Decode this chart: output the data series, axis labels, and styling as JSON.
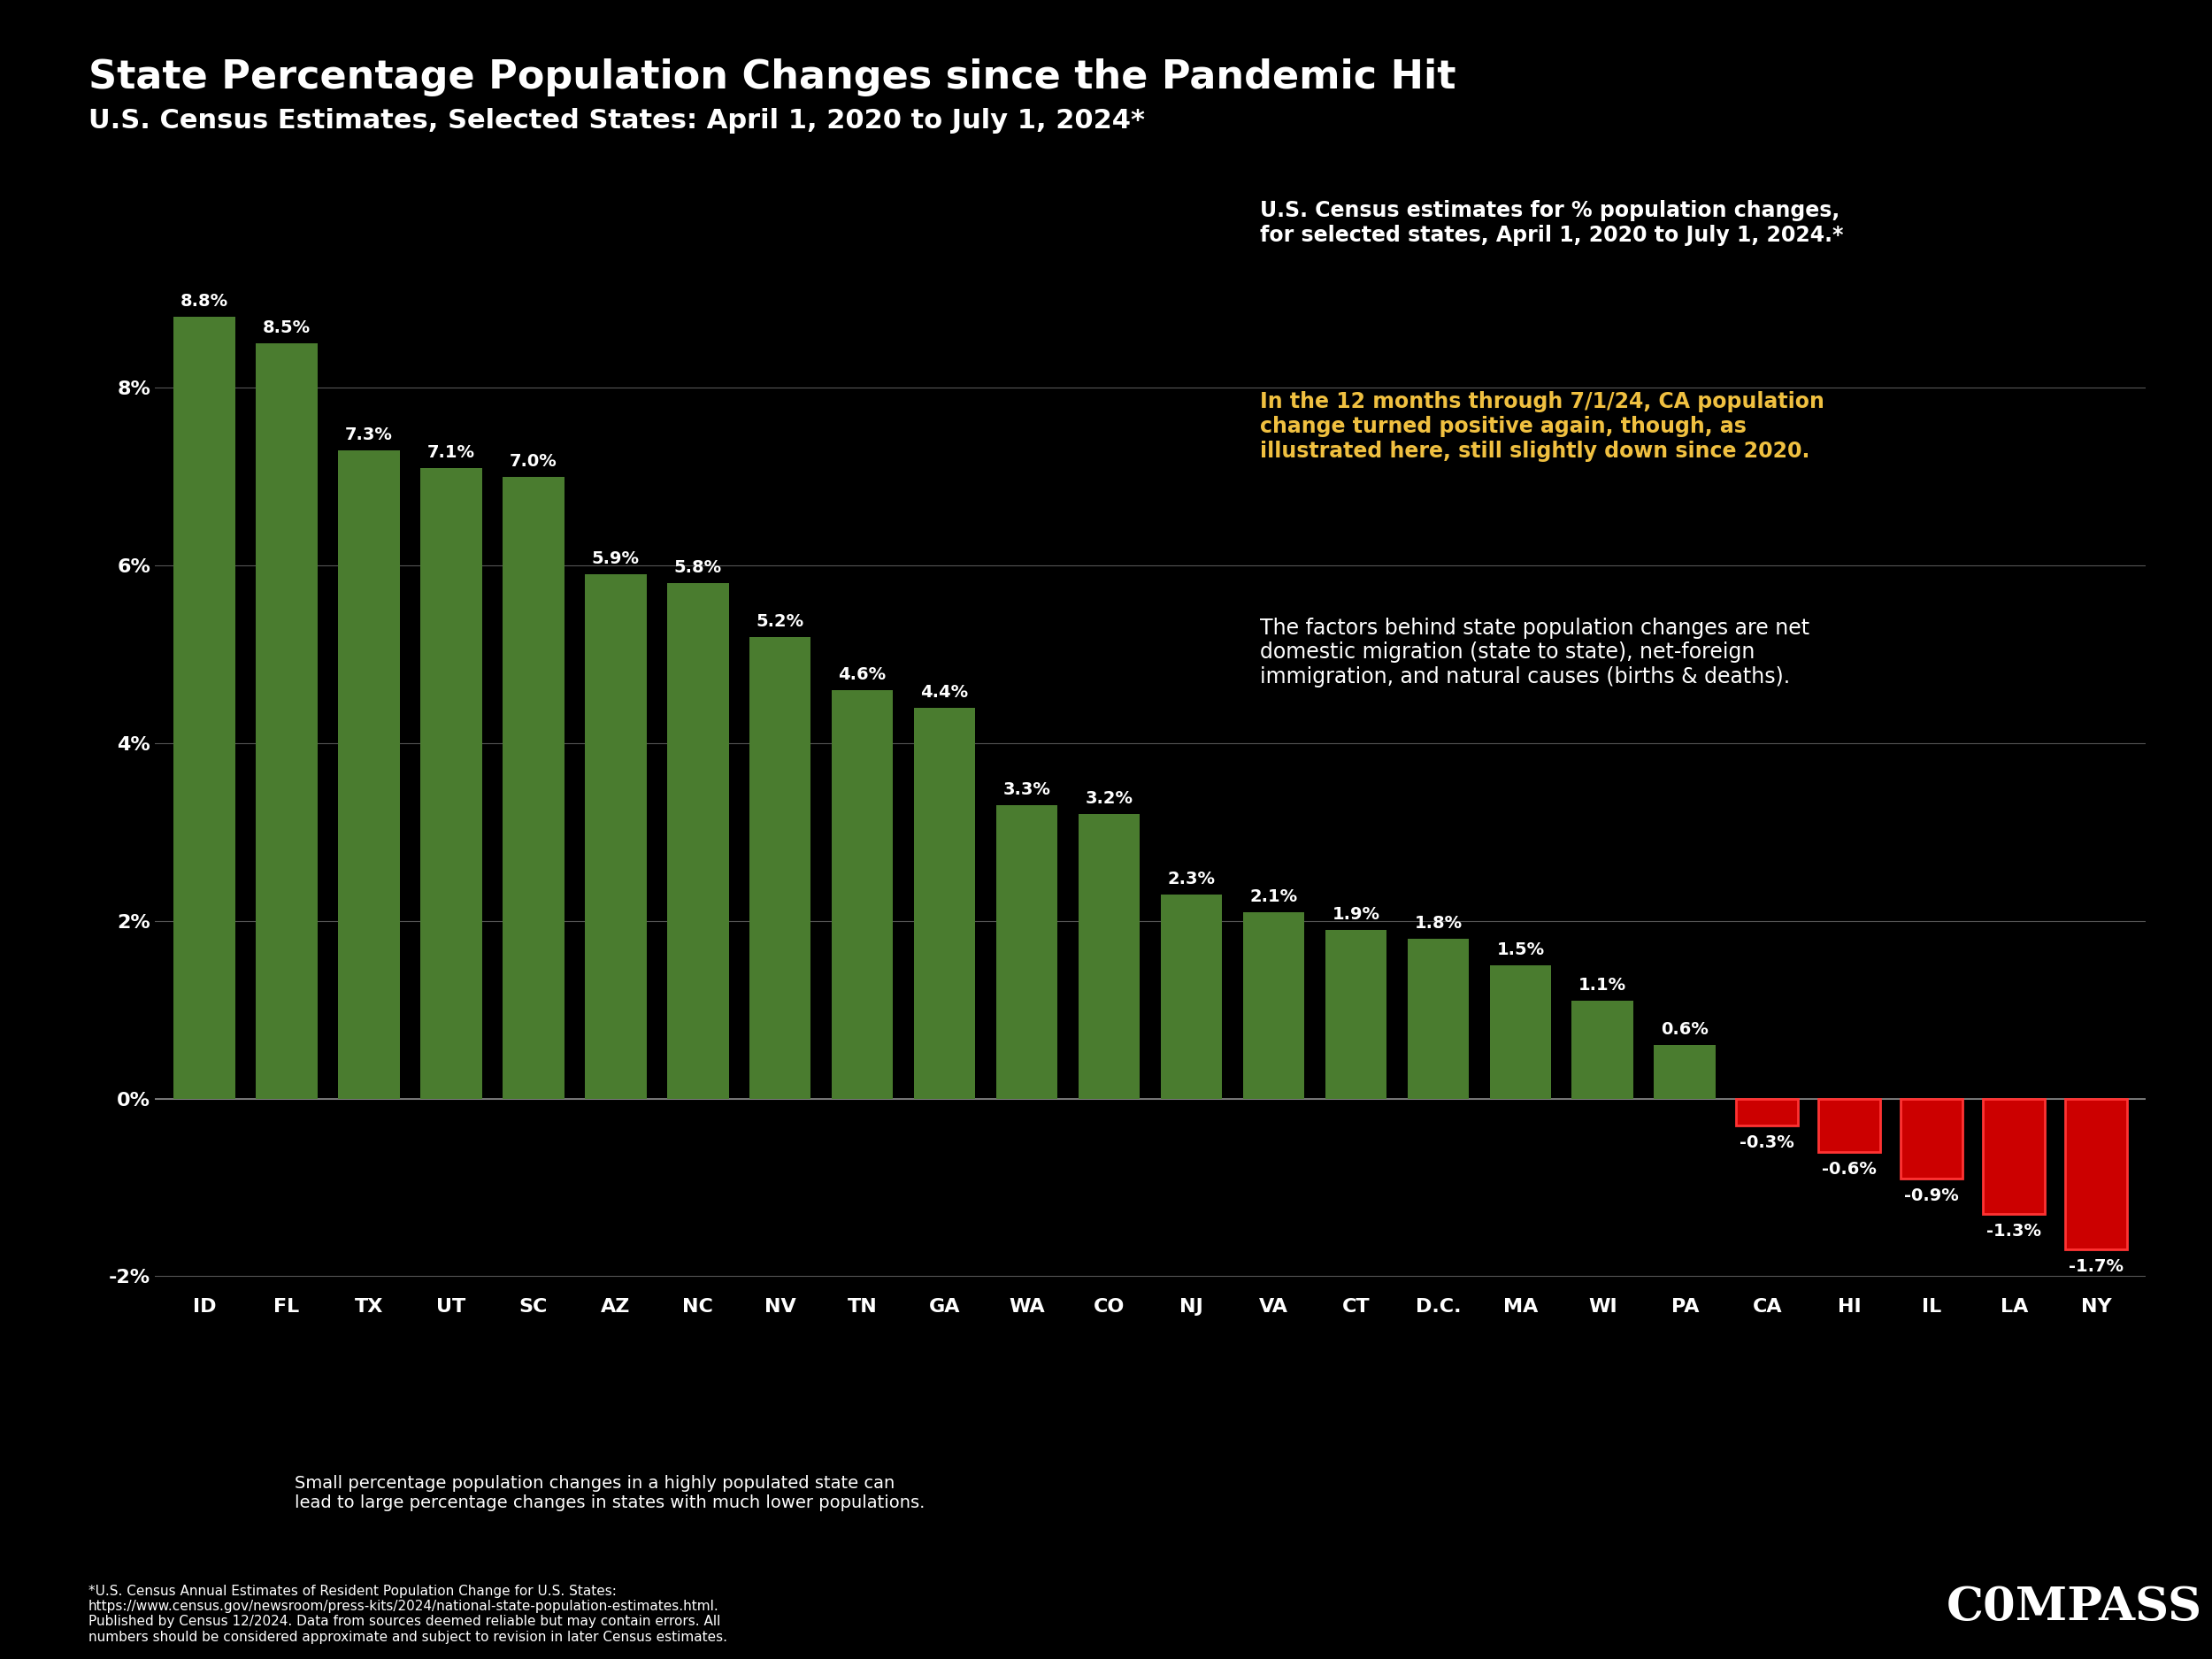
{
  "categories": [
    "ID",
    "FL",
    "TX",
    "UT",
    "SC",
    "AZ",
    "NC",
    "NV",
    "TN",
    "GA",
    "WA",
    "CO",
    "NJ",
    "VA",
    "CT",
    "D.C.",
    "MA",
    "WI",
    "PA",
    "CA",
    "HI",
    "IL",
    "LA",
    "NY"
  ],
  "values": [
    8.8,
    8.5,
    7.3,
    7.1,
    7.0,
    5.9,
    5.8,
    5.2,
    4.6,
    4.4,
    3.3,
    3.2,
    2.3,
    2.1,
    1.9,
    1.8,
    1.5,
    1.1,
    0.6,
    -0.3,
    -0.6,
    -0.9,
    -1.3,
    -1.7
  ],
  "value_labels": [
    "8.8%",
    "8.5%",
    "7.3%",
    "7.1%",
    "7.0%",
    "5.9%",
    "5.8%",
    "5.2%",
    "4.6%",
    "4.4%",
    "3.3%",
    "3.2%",
    "2.3%",
    "2.1%",
    "1.9%",
    "1.8%",
    "1.5%",
    "1.1%",
    "0.6%",
    "-0.3%",
    "-0.6%",
    "-0.9%",
    "-1.3%",
    "-1.7%"
  ],
  "bar_color_positive": "#4a7c2f",
  "bar_color_negative": "#cc0000",
  "background_color": "#000000",
  "text_color": "#ffffff",
  "title": "State Percentage Population Changes since the Pandemic Hit",
  "subtitle": "U.S. Census Estimates, Selected States: April 1, 2020 to July 1, 2024*",
  "annotation1_title": "U.S. Census estimates for % population changes,\nfor selected states, April 1, 2020 to July 1, 2024.*",
  "annotation2": "In the 12 months through 7/1/24, CA population\nchange turned positive again, though, as\nillustrated here, still slightly down since 2020.",
  "annotation3": "The factors behind state population changes are net\ndomestic migration (state to state), net-foreign\nimmigration, and natural causes (births & deaths).",
  "annotation4": "Small percentage population changes in a highly populated state can\nlead to large percentage changes in states with much lower populations.",
  "footnote": "*U.S. Census Annual Estimates of Resident Population Change for U.S. States:\nhttps://www.census.gov/newsroom/press-kits/2024/national-state-population-estimates.html.\nPublished by Census 12/2024. Data from sources deemed reliable but may contain errors. All\nnumbers should be considered approximate and subject to revision in later Census estimates.",
  "compass_text": "C0MPASS",
  "ylim": [
    -2.2,
    10.5
  ],
  "yticks": [
    -2,
    0,
    2,
    4,
    6,
    8
  ],
  "ytick_labels": [
    "-2%",
    "0%",
    "2%",
    "4%",
    "6%",
    "8%"
  ]
}
